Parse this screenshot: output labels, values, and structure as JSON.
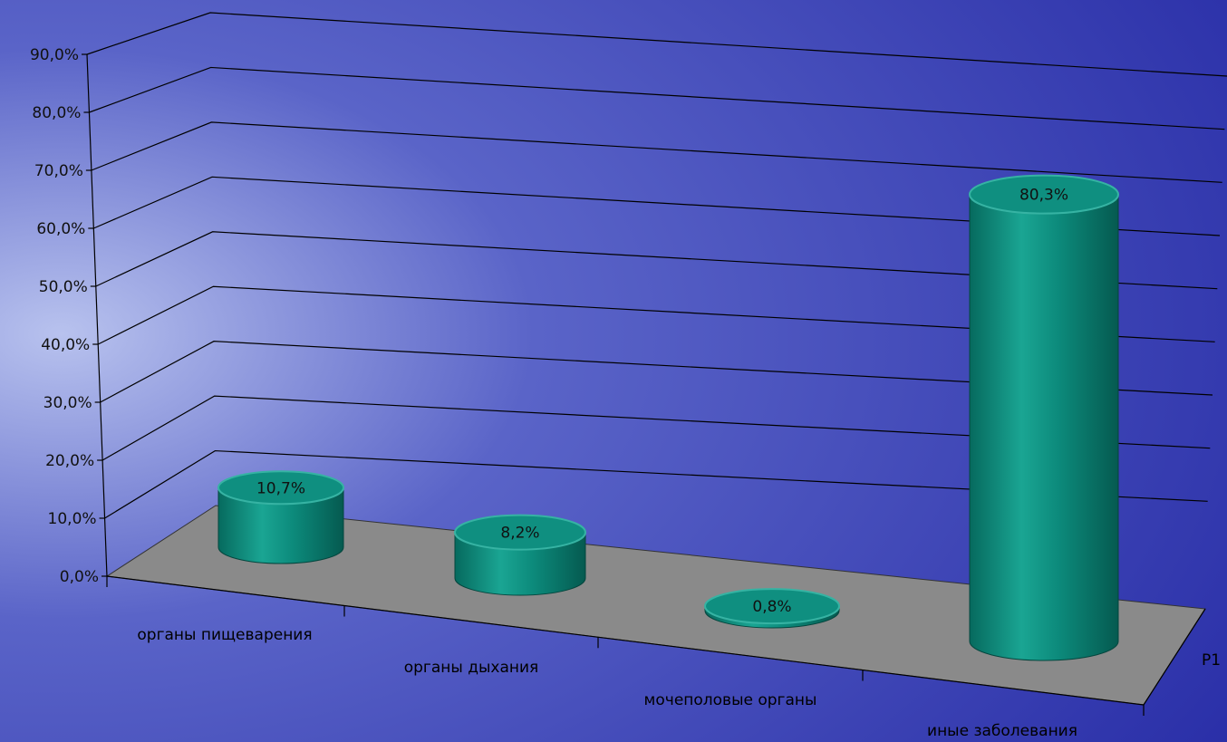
{
  "colors": {
    "bar_top": "#0f8f80",
    "bar_side_light": "#36b3a3",
    "bar_side_dark": "#066a5e",
    "floor": "#8a8a8a",
    "grid": "#000000",
    "background_light": "#9aa6de",
    "background_dark": "#2a2fa8"
  },
  "chart_data": {
    "type": "bar",
    "style": "3d-cylinder",
    "categories": [
      "органы пищеварения",
      "органы дыхания",
      "мочеполовые органы",
      "иные заболевания"
    ],
    "series": [
      {
        "name": "Р1",
        "values": [
          10.7,
          8.2,
          0.8,
          80.3
        ]
      }
    ],
    "data_labels": [
      "10,7%",
      "8,2%",
      "0,8%",
      "80,3%"
    ],
    "y_ticks": [
      "0,0%",
      "10,0%",
      "20,0%",
      "30,0%",
      "40,0%",
      "50,0%",
      "60,0%",
      "70,0%",
      "80,0%",
      "90,0%"
    ],
    "ylim": [
      0,
      90
    ],
    "grid": true,
    "legend": "none"
  }
}
